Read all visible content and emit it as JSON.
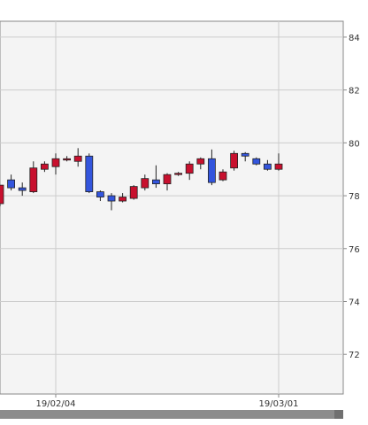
{
  "chart_data": {
    "type": "candlestick",
    "title": "",
    "xlabel": "",
    "ylabel": "",
    "ylim": [
      70.5,
      84.6
    ],
    "y_ticks": [
      72,
      74,
      76,
      78,
      80,
      82,
      84
    ],
    "y_axis_position": "right",
    "grid": true,
    "x_tick_labels": [
      {
        "label": "19/02/04",
        "index": 5
      },
      {
        "label": "19/03/01",
        "index": 25
      }
    ],
    "colors": {
      "up": "#c8102e",
      "down": "#3355dd",
      "grid": "#cccccc",
      "plot_background": "#f4f4f4",
      "border": "#888888",
      "scrollbar": "#8c8c8c"
    },
    "candles": [
      {
        "open": 77.7,
        "high": 78.4,
        "low": 77.6,
        "close": 78.4
      },
      {
        "open": 78.6,
        "high": 78.8,
        "low": 78.2,
        "close": 78.3
      },
      {
        "open": 78.3,
        "high": 78.5,
        "low": 78.0,
        "close": 78.2
      },
      {
        "open": 78.15,
        "high": 79.3,
        "low": 78.1,
        "close": 79.05
      },
      {
        "open": 79.0,
        "high": 79.3,
        "low": 78.9,
        "close": 79.2
      },
      {
        "open": 79.1,
        "high": 79.6,
        "low": 78.8,
        "close": 79.4
      },
      {
        "open": 79.35,
        "high": 79.5,
        "low": 79.3,
        "close": 79.4
      },
      {
        "open": 79.3,
        "high": 79.8,
        "low": 79.1,
        "close": 79.5
      },
      {
        "open": 79.5,
        "high": 79.6,
        "low": 78.1,
        "close": 78.15
      },
      {
        "open": 78.15,
        "high": 78.2,
        "low": 77.8,
        "close": 77.95
      },
      {
        "open": 78.0,
        "high": 78.1,
        "low": 77.45,
        "close": 77.8
      },
      {
        "open": 77.8,
        "high": 78.1,
        "low": 77.75,
        "close": 77.95
      },
      {
        "open": 77.9,
        "high": 78.4,
        "low": 77.85,
        "close": 78.35
      },
      {
        "open": 78.3,
        "high": 78.8,
        "low": 78.2,
        "close": 78.65
      },
      {
        "open": 78.6,
        "high": 79.15,
        "low": 78.3,
        "close": 78.45
      },
      {
        "open": 78.45,
        "high": 78.85,
        "low": 78.2,
        "close": 78.8
      },
      {
        "open": 78.8,
        "high": 78.9,
        "low": 78.75,
        "close": 78.85
      },
      {
        "open": 78.85,
        "high": 79.3,
        "low": 78.6,
        "close": 79.2
      },
      {
        "open": 79.2,
        "high": 79.45,
        "low": 79.0,
        "close": 79.4
      },
      {
        "open": 79.4,
        "high": 79.75,
        "low": 78.4,
        "close": 78.5
      },
      {
        "open": 78.6,
        "high": 79.0,
        "low": 78.55,
        "close": 78.9
      },
      {
        "open": 79.05,
        "high": 79.7,
        "low": 78.95,
        "close": 79.6
      },
      {
        "open": 79.6,
        "high": 79.65,
        "low": 79.3,
        "close": 79.5
      },
      {
        "open": 79.4,
        "high": 79.45,
        "low": 79.15,
        "close": 79.2
      },
      {
        "open": 79.2,
        "high": 79.35,
        "low": 78.95,
        "close": 79.0
      },
      {
        "open": 79.0,
        "high": 79.6,
        "low": 78.95,
        "close": 79.2
      }
    ]
  }
}
